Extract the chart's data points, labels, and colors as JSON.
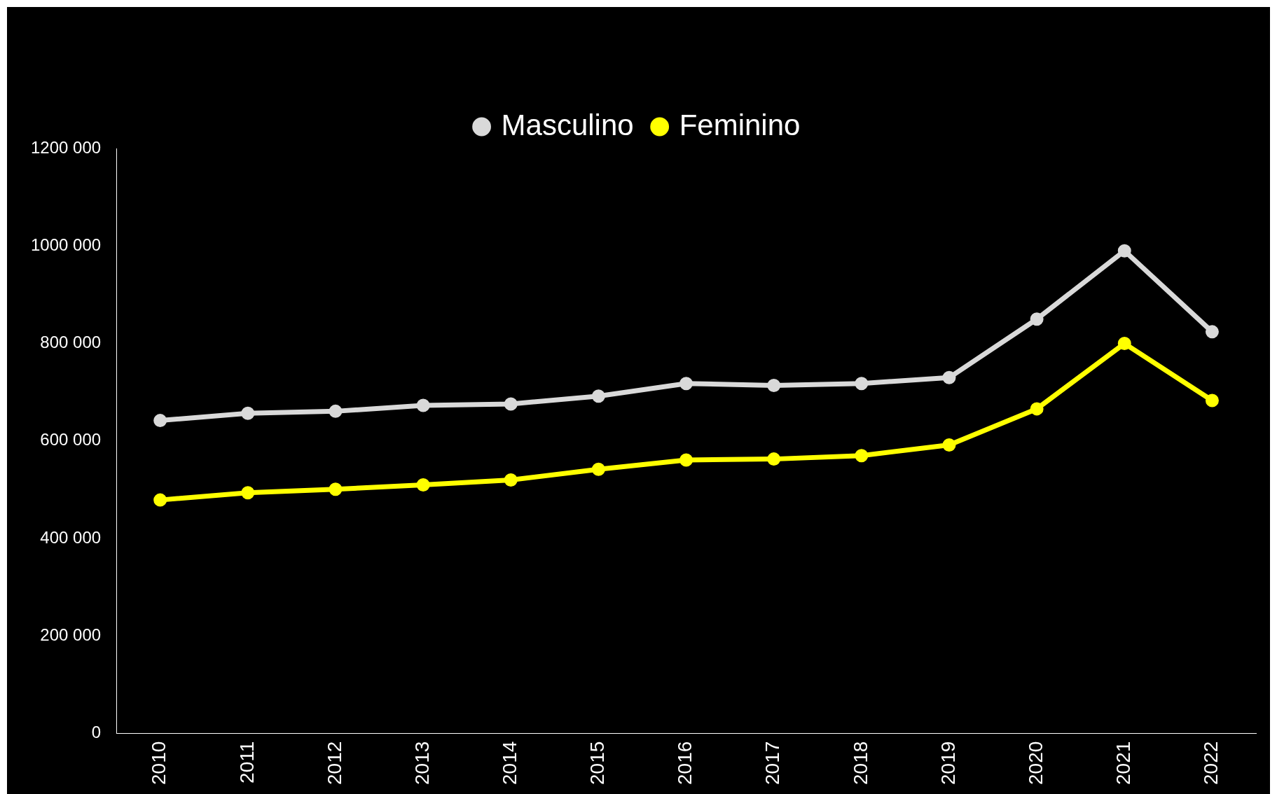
{
  "chart_data": {
    "type": "line",
    "categories": [
      "2010",
      "2011",
      "2012",
      "2013",
      "2014",
      "2015",
      "2016",
      "2017",
      "2018",
      "2019",
      "2020",
      "2021",
      "2022"
    ],
    "series": [
      {
        "name": "Masculino",
        "color": "#d9d9d9",
        "values": [
          642000,
          657000,
          661000,
          673000,
          676000,
          692000,
          718000,
          714000,
          718000,
          730000,
          850000,
          990000,
          824000
        ]
      },
      {
        "name": "Feminino",
        "color": "#ffff00",
        "values": [
          479000,
          494000,
          501000,
          510000,
          520000,
          542000,
          561000,
          563000,
          570000,
          592000,
          666000,
          800000,
          683000
        ]
      }
    ],
    "ylim": [
      0,
      1200000
    ],
    "yticks": [
      0,
      {
        "value": 200000,
        "label": "200 000"
      },
      {
        "value": 400000,
        "label": "400 000"
      },
      {
        "value": 600000,
        "label": "600 000"
      },
      {
        "value": 800000,
        "label": "800 000"
      },
      {
        "value": 1000000,
        "label": "1000 000"
      },
      {
        "value": 1200000,
        "label": "1200 000"
      }
    ],
    "grid": false,
    "legend": "top",
    "marker": "circle",
    "line_style": "solid"
  }
}
